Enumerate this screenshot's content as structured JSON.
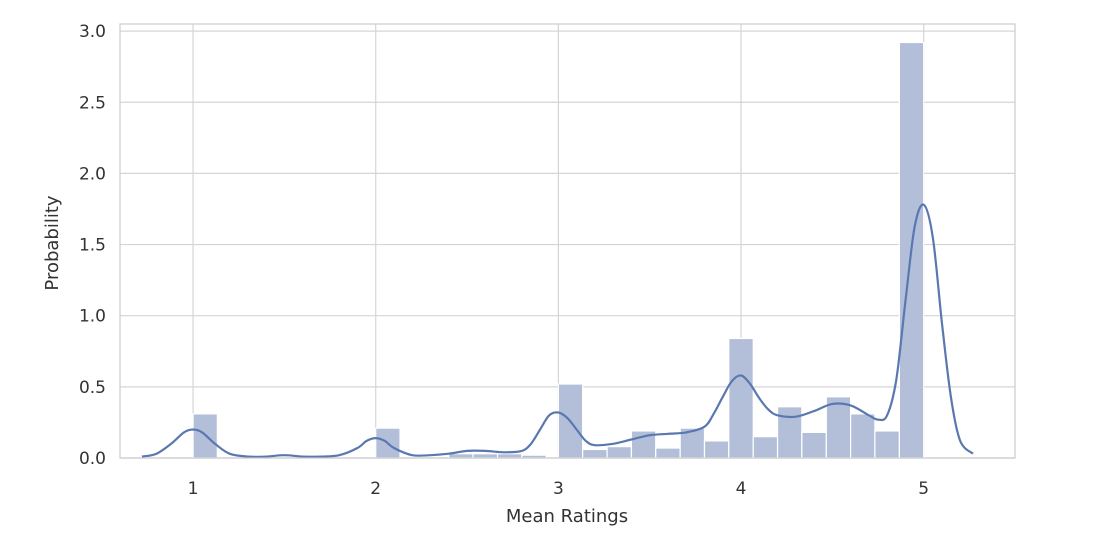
{
  "chart_data": {
    "type": "bar",
    "subtype": "histogram-with-kde",
    "title": "",
    "xlabel": "Mean Ratings",
    "ylabel": "Probability",
    "xlim": [
      0.6,
      5.5
    ],
    "ylim": [
      0,
      3.05
    ],
    "xticks": [
      1,
      2,
      3,
      4,
      5
    ],
    "yticks": [
      0.0,
      0.5,
      1.0,
      1.5,
      2.0,
      2.5,
      3.0
    ],
    "grid": true,
    "colors": {
      "bar": "#b3bfd9",
      "line": "#5a78b0",
      "grid": "#d5d5d5",
      "frame": "#cccccc"
    },
    "histogram": {
      "bins": [
        {
          "x0": 1.0,
          "x1": 1.133,
          "y": 0.31
        },
        {
          "x0": 2.0,
          "x1": 2.133,
          "y": 0.21
        },
        {
          "x0": 2.4,
          "x1": 2.533,
          "y": 0.03
        },
        {
          "x0": 2.533,
          "x1": 2.667,
          "y": 0.03
        },
        {
          "x0": 2.667,
          "x1": 2.8,
          "y": 0.03
        },
        {
          "x0": 2.8,
          "x1": 2.933,
          "y": 0.02
        },
        {
          "x0": 3.0,
          "x1": 3.133,
          "y": 0.52
        },
        {
          "x0": 3.133,
          "x1": 3.267,
          "y": 0.06
        },
        {
          "x0": 3.267,
          "x1": 3.4,
          "y": 0.08
        },
        {
          "x0": 3.4,
          "x1": 3.533,
          "y": 0.19
        },
        {
          "x0": 3.533,
          "x1": 3.667,
          "y": 0.07
        },
        {
          "x0": 3.667,
          "x1": 3.8,
          "y": 0.21
        },
        {
          "x0": 3.8,
          "x1": 3.933,
          "y": 0.12
        },
        {
          "x0": 3.933,
          "x1": 4.067,
          "y": 0.84
        },
        {
          "x0": 4.067,
          "x1": 4.2,
          "y": 0.15
        },
        {
          "x0": 4.2,
          "x1": 4.333,
          "y": 0.36
        },
        {
          "x0": 4.333,
          "x1": 4.467,
          "y": 0.18
        },
        {
          "x0": 4.467,
          "x1": 4.6,
          "y": 0.43
        },
        {
          "x0": 4.6,
          "x1": 4.733,
          "y": 0.31
        },
        {
          "x0": 4.733,
          "x1": 4.867,
          "y": 0.19
        },
        {
          "x0": 4.867,
          "x1": 5.0,
          "y": 2.92
        }
      ]
    },
    "kde": {
      "x": [
        0.72,
        0.8,
        0.88,
        0.95,
        1.0,
        1.05,
        1.12,
        1.2,
        1.3,
        1.4,
        1.5,
        1.6,
        1.7,
        1.8,
        1.9,
        1.95,
        2.0,
        2.05,
        2.1,
        2.2,
        2.3,
        2.4,
        2.5,
        2.6,
        2.7,
        2.8,
        2.85,
        2.9,
        2.95,
        3.0,
        3.05,
        3.1,
        3.15,
        3.2,
        3.3,
        3.4,
        3.5,
        3.6,
        3.7,
        3.8,
        3.85,
        3.9,
        3.95,
        4.0,
        4.05,
        4.1,
        4.15,
        4.2,
        4.3,
        4.4,
        4.5,
        4.6,
        4.7,
        4.75,
        4.8,
        4.85,
        4.9,
        4.95,
        5.0,
        5.05,
        5.1,
        5.15,
        5.2,
        5.27
      ],
      "y": [
        0.01,
        0.03,
        0.1,
        0.18,
        0.2,
        0.18,
        0.1,
        0.03,
        0.01,
        0.01,
        0.02,
        0.01,
        0.01,
        0.02,
        0.07,
        0.12,
        0.14,
        0.12,
        0.07,
        0.02,
        0.02,
        0.03,
        0.05,
        0.05,
        0.04,
        0.05,
        0.1,
        0.2,
        0.3,
        0.32,
        0.28,
        0.2,
        0.12,
        0.09,
        0.1,
        0.13,
        0.16,
        0.17,
        0.18,
        0.22,
        0.31,
        0.43,
        0.54,
        0.58,
        0.52,
        0.42,
        0.34,
        0.3,
        0.29,
        0.33,
        0.38,
        0.37,
        0.3,
        0.27,
        0.3,
        0.55,
        1.1,
        1.62,
        1.78,
        1.55,
        0.95,
        0.42,
        0.12,
        0.03
      ]
    }
  }
}
